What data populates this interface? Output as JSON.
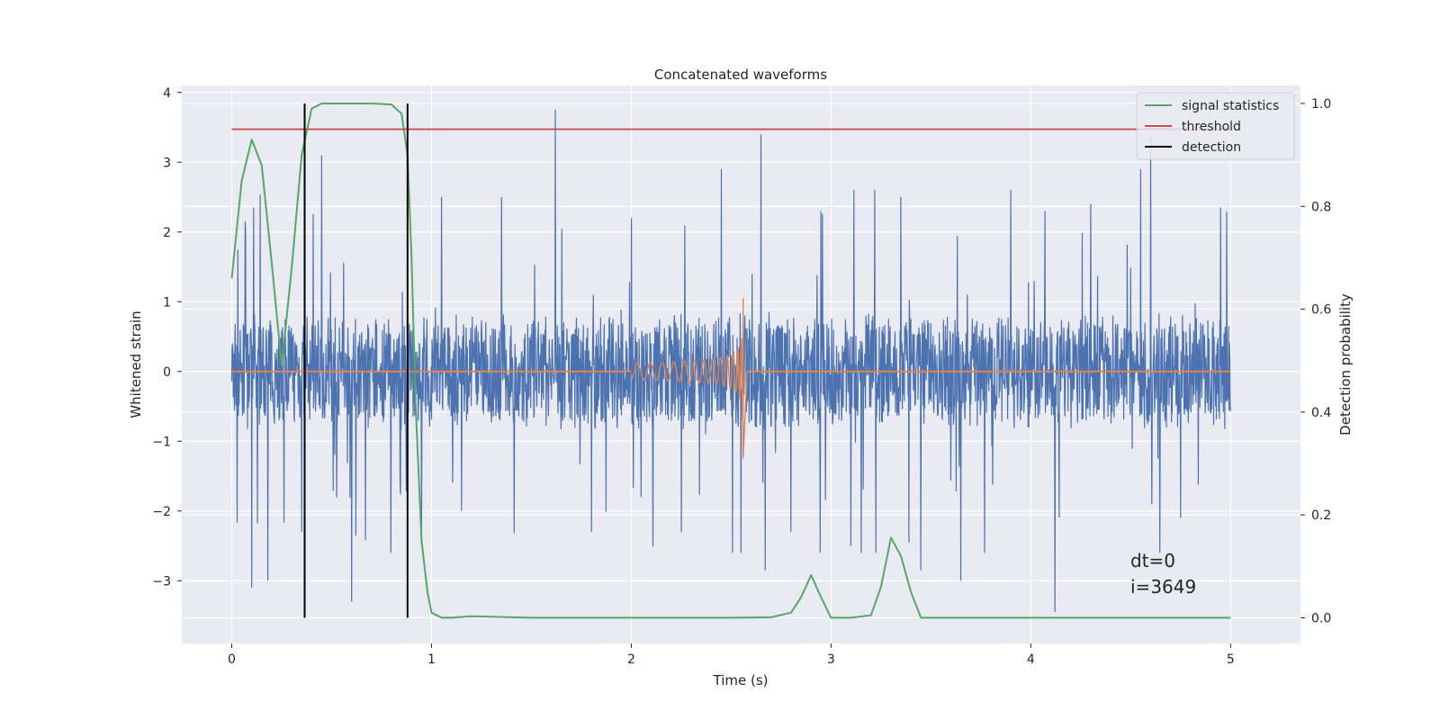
{
  "chart_data": {
    "type": "line",
    "title": "Concatenated waveforms",
    "xlabel": "Time (s)",
    "ylabel_left": "Whitened strain",
    "ylabel_right": "Detection probability",
    "xlim": [
      -0.25,
      5.35
    ],
    "ylim_left": [
      -3.9,
      4.1
    ],
    "ylim_right": [
      -0.05,
      1.035
    ],
    "x_ticks": [
      0,
      1,
      2,
      3,
      4,
      5
    ],
    "y_ticks_left": [
      -3,
      -2,
      -1,
      0,
      1,
      2,
      3,
      4
    ],
    "y_ticks_right": [
      0.0,
      0.2,
      0.4,
      0.6,
      0.8,
      1.0
    ],
    "x_tick_labels": [
      "0",
      "1",
      "2",
      "3",
      "4",
      "5"
    ],
    "y_tick_labels_left": [
      "−3",
      "−2",
      "−1",
      "0",
      "1",
      "2",
      "3",
      "4"
    ],
    "y_tick_labels_right": [
      "0.0",
      "0.2",
      "0.4",
      "0.6",
      "0.8",
      "1.0"
    ],
    "grid": true,
    "legend_position": "top-right",
    "colors": {
      "background": "#eaeaf2",
      "grid": "#ffffff",
      "strain": "#4c72b0",
      "injection": "#dd8452",
      "signal_statistics": "#55a868",
      "threshold": "#c44e52",
      "detection": "#000000"
    },
    "series": [
      {
        "name": "signal statistics",
        "axis": "right",
        "x": [
          0.0,
          0.05,
          0.1,
          0.15,
          0.2,
          0.25,
          0.3,
          0.35,
          0.4,
          0.45,
          0.5,
          0.6,
          0.7,
          0.8,
          0.85,
          0.88,
          0.9,
          0.92,
          0.95,
          0.98,
          1.0,
          1.05,
          1.1,
          1.2,
          1.5,
          2.0,
          2.5,
          2.7,
          2.8,
          2.85,
          2.9,
          2.95,
          3.0,
          3.1,
          3.2,
          3.25,
          3.3,
          3.35,
          3.4,
          3.45,
          3.5,
          4.0,
          4.5,
          5.0
        ],
        "y": [
          0.66,
          0.85,
          0.93,
          0.88,
          0.69,
          0.49,
          0.68,
          0.9,
          0.99,
          1.0,
          1.0,
          1.0,
          1.0,
          0.998,
          0.98,
          0.9,
          0.7,
          0.42,
          0.15,
          0.05,
          0.01,
          0.0,
          0.0,
          0.003,
          0.0,
          0.0,
          0.0,
          0.001,
          0.01,
          0.04,
          0.083,
          0.04,
          0.0,
          0.0,
          0.005,
          0.06,
          0.156,
          0.12,
          0.05,
          0.0,
          0.0,
          0.0,
          0.0,
          0.0
        ]
      },
      {
        "name": "threshold",
        "axis": "right",
        "x": [
          0,
          5
        ],
        "y": [
          0.95,
          0.95
        ]
      },
      {
        "name": "detection",
        "axis": "right",
        "x_positions": [
          0.365,
          0.88
        ],
        "y_range": [
          0.0,
          1.0
        ]
      },
      {
        "name": "",
        "axis": "left",
        "description_type": "whitened_strain_noise",
        "x_range": [
          0,
          5
        ],
        "core_envelope": 0.85,
        "spikes": [
          {
            "x": 0.03,
            "y": 1.75
          },
          {
            "x": 0.07,
            "y": 2.0
          },
          {
            "x": 0.1,
            "y": -3.1
          },
          {
            "x": 0.11,
            "y": 2.35
          },
          {
            "x": 0.18,
            "y": -3.0
          },
          {
            "x": 0.35,
            "y": -2.3
          },
          {
            "x": 0.45,
            "y": 3.1
          },
          {
            "x": 0.6,
            "y": -3.3
          },
          {
            "x": 0.95,
            "y": -2.35
          },
          {
            "x": 1.05,
            "y": 2.5
          },
          {
            "x": 1.15,
            "y": -2.0
          },
          {
            "x": 1.35,
            "y": 2.5
          },
          {
            "x": 1.62,
            "y": 3.75
          },
          {
            "x": 1.8,
            "y": -2.3
          },
          {
            "x": 2.0,
            "y": 2.2
          },
          {
            "x": 2.25,
            "y": -2.3
          },
          {
            "x": 2.45,
            "y": 2.9
          },
          {
            "x": 2.65,
            "y": 3.4
          },
          {
            "x": 2.67,
            "y": -2.85
          },
          {
            "x": 2.8,
            "y": -2.3
          },
          {
            "x": 2.95,
            "y": 2.3
          },
          {
            "x": 3.1,
            "y": -2.5
          },
          {
            "x": 3.35,
            "y": 2.5
          },
          {
            "x": 3.45,
            "y": -2.85
          },
          {
            "x": 3.65,
            "y": -3.0
          },
          {
            "x": 3.9,
            "y": 2.6
          },
          {
            "x": 4.12,
            "y": -3.45
          },
          {
            "x": 4.3,
            "y": 2.4
          },
          {
            "x": 4.55,
            "y": 2.9
          },
          {
            "x": 4.6,
            "y": 3.35
          },
          {
            "x": 4.75,
            "y": -2.1
          },
          {
            "x": 4.95,
            "y": 2.35
          }
        ]
      },
      {
        "name": "",
        "axis": "left",
        "description_type": "injected_chirp",
        "t_start": 2.0,
        "t_merge": 2.56,
        "amplitude_start": 0.12,
        "amplitude_peak_pos": 1.05,
        "amplitude_peak_neg": -1.25
      }
    ],
    "annotations": [
      "dt=0",
      "i=3649"
    ]
  }
}
